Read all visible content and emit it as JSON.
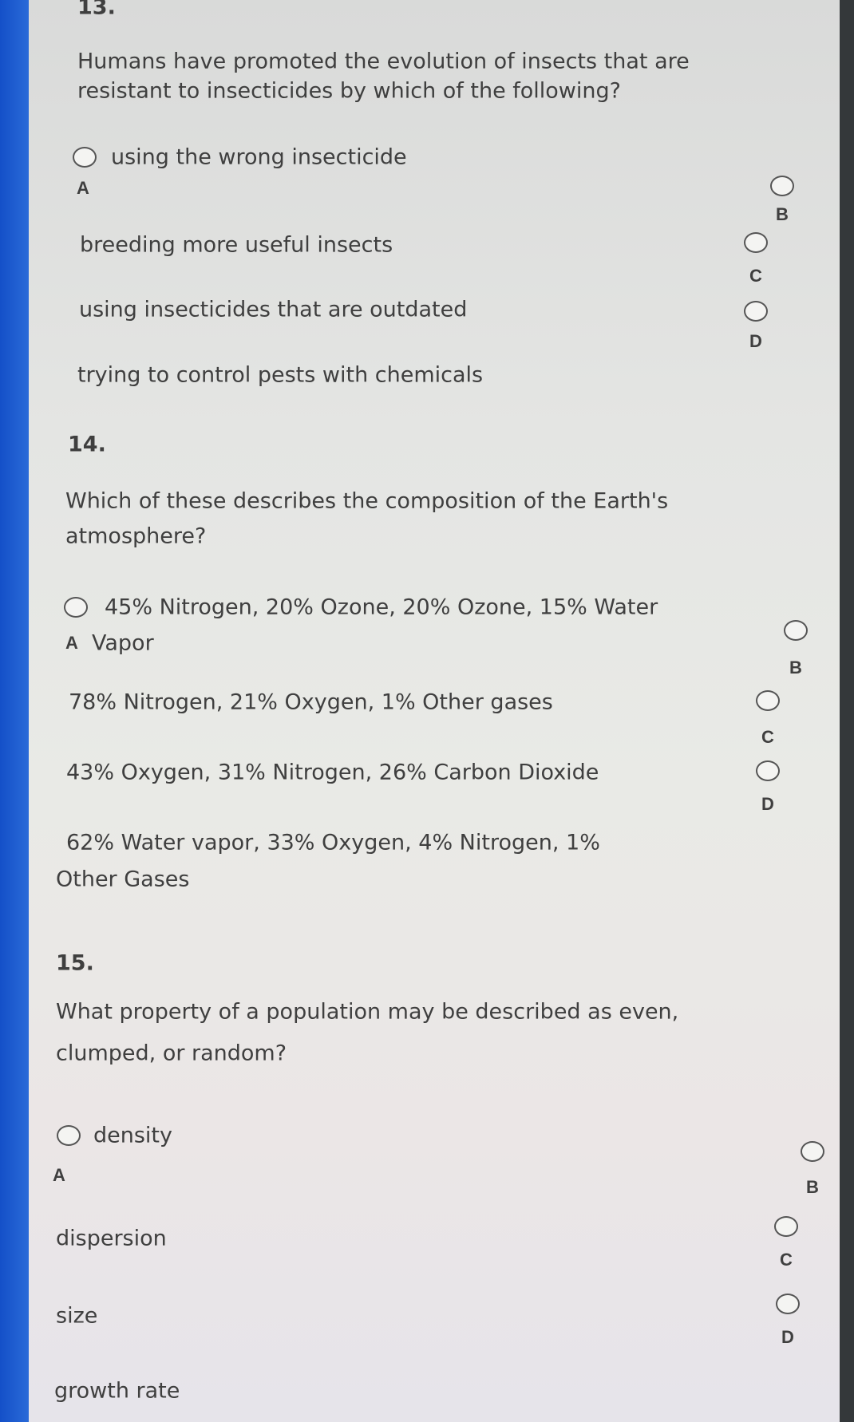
{
  "colors": {
    "left_bar": "#1f5fd0",
    "right_bar": "#34383a",
    "text": "#3f3f3f"
  },
  "questions": [
    {
      "number": "13.",
      "prompt": [
        "Humans have promoted the evolution of insects that are",
        "resistant to insecticides by which of the following?"
      ],
      "options": [
        {
          "letter": "A",
          "text": "using the wrong insecticide"
        },
        {
          "letter": "B",
          "text": "breeding more useful insects"
        },
        {
          "letter": "C",
          "text": "using insecticides that are outdated"
        },
        {
          "letter": "D",
          "text": "trying to control pests with chemicals"
        }
      ]
    },
    {
      "number": "14.",
      "prompt": [
        "Which of these describes the composition of the Earth's",
        "atmosphere?"
      ],
      "options": [
        {
          "letter": "A",
          "text": [
            "45% Nitrogen, 20% Ozone, 20% Ozone, 15% Water",
            "Vapor"
          ]
        },
        {
          "letter": "B",
          "text": "78% Nitrogen, 21% Oxygen, 1% Other gases"
        },
        {
          "letter": "C",
          "text": "43% Oxygen, 31% Nitrogen, 26% Carbon Dioxide"
        },
        {
          "letter": "D",
          "text": [
            "62% Water vapor, 33% Oxygen, 4% Nitrogen, 1%",
            "Other Gases"
          ]
        }
      ]
    },
    {
      "number": "15.",
      "prompt": [
        "What property of a population may be described as even,",
        "clumped, or random?"
      ],
      "options": [
        {
          "letter": "A",
          "text": "density"
        },
        {
          "letter": "B",
          "text": "dispersion"
        },
        {
          "letter": "C",
          "text": "size"
        },
        {
          "letter": "D",
          "text": "growth rate"
        }
      ]
    }
  ]
}
